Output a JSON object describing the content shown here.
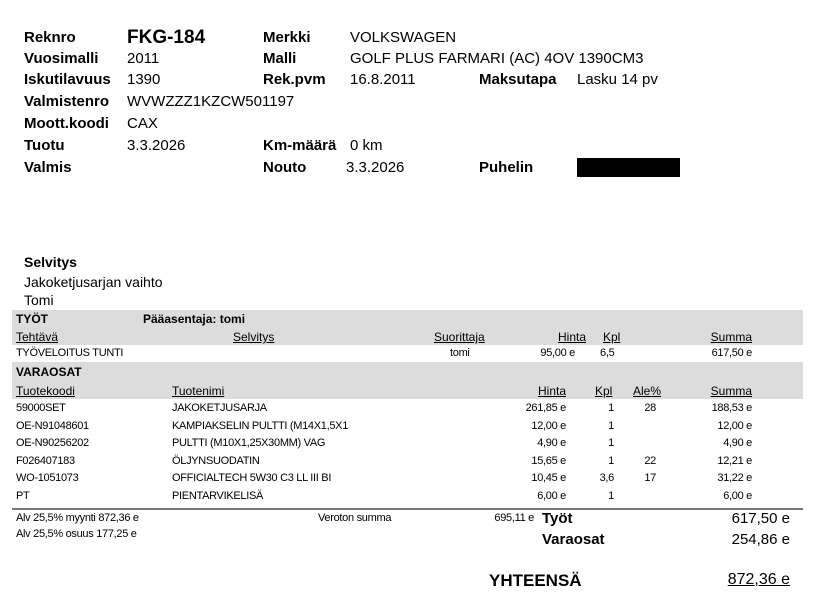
{
  "vehicle": {
    "reknro_label": "Reknro",
    "reknro": "FKG-184",
    "merkki_label": "Merkki",
    "merkki": "VOLKSWAGEN",
    "vuosimalli_label": "Vuosimalli",
    "vuosimalli": "2011",
    "malli_label": "Malli",
    "malli": "GOLF PLUS FARMARI (AC) 4OV 1390CM3",
    "iskutilavuus_label": "Iskutilavuus",
    "iskutilavuus": "1390",
    "rekpvm_label": "Rek.pvm",
    "rekpvm": "16.8.2011",
    "maksutapa_label": "Maksutapa",
    "maksutapa": "Lasku 14 pv",
    "valmistenro_label": "Valmistenro",
    "valmistenro": "WVWZZZ1KZCW501197",
    "moottkoodi_label": "Moott.koodi",
    "moottkoodi": "CAX",
    "tuotu_label": "Tuotu",
    "tuotu": "3.3.2026",
    "kmmaara_label": "Km-määrä",
    "kmmaara": "0 km",
    "valmis_label": "Valmis",
    "nouto_label": "Nouto",
    "nouto": "3.3.2026",
    "puhelin_label": "Puhelin"
  },
  "selvitys": {
    "title": "Selvitys",
    "lines": [
      "Jakoketjusarjan vaihto",
      "Tomi"
    ]
  },
  "tyot": {
    "title": "TYÖT",
    "paaasentaja": "Pääasentaja: tomi",
    "headers": [
      "Tehtävä",
      "Selvitys",
      "Suorittaja",
      "Hinta",
      "Kpl",
      "Summa"
    ],
    "rows": [
      {
        "tehtava": "TYÖVELOITUS TUNTI",
        "selvitys": "",
        "suorittaja": "tomi",
        "hinta": "95,00 e",
        "kpl": "6,5",
        "summa": "617,50 e"
      }
    ]
  },
  "varaosat": {
    "title": "VARAOSAT",
    "headers": [
      "Tuotekoodi",
      "Tuotenimi",
      "Hinta",
      "Kpl",
      "Ale%",
      "Summa"
    ],
    "rows": [
      {
        "koodi": "59000SET",
        "nimi": "JAKOKETJUSARJA",
        "hinta": "261,85 e",
        "kpl": "1",
        "ale": "28",
        "summa": "188,53 e"
      },
      {
        "koodi": "OE-N91048601",
        "nimi": "KAMPIAKSELIN PULTTI (M14X1,5X1",
        "hinta": "12,00 e",
        "kpl": "1",
        "ale": "",
        "summa": "12,00 e"
      },
      {
        "koodi": "OE-N90256202",
        "nimi": "PULTTI (M10X1,25X30MM) VAG",
        "hinta": "4,90 e",
        "kpl": "1",
        "ale": "",
        "summa": "4,90 e"
      },
      {
        "koodi": "F026407183",
        "nimi": "ÖLJYNSUODATIN",
        "hinta": "15,65 e",
        "kpl": "1",
        "ale": "22",
        "summa": "12,21 e"
      },
      {
        "koodi": "WO-1051073",
        "nimi": "OFFICIALTECH 5W30 C3 LL III BI",
        "hinta": "10,45 e",
        "kpl": "3,6",
        "ale": "17",
        "summa": "31,22 e"
      },
      {
        "koodi": "PT",
        "nimi": "PIENTARVIKELISÄ",
        "hinta": "6,00 e",
        "kpl": "1",
        "ale": "",
        "summa": "6,00 e"
      }
    ]
  },
  "totals": {
    "alv_myynti": "Alv 25,5% myynti 872,36 e",
    "alv_osuus": "Alv 25,5% osuus 177,25 e",
    "veroton_label": "Veroton summa",
    "veroton": "695,11 e",
    "tyot_label": "Työt",
    "tyot": "617,50 e",
    "varaosat_label": "Varaosat",
    "varaosat": "254,86 e",
    "yhteensa_label": "YHTEENSÄ",
    "yhteensa": "872,36 e"
  }
}
